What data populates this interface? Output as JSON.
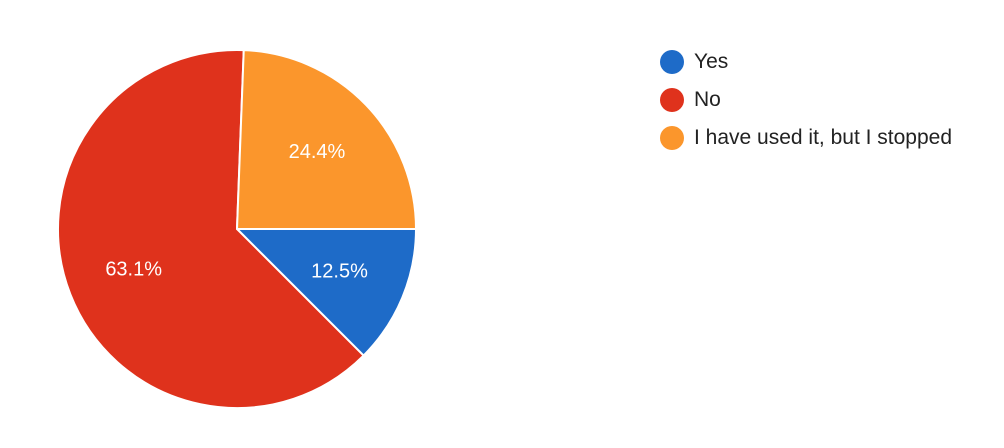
{
  "chart_data": {
    "type": "pie",
    "slices": [
      {
        "label": "Yes",
        "value": 12.5,
        "display": "12.5%",
        "color": "#1e6bc8"
      },
      {
        "label": "No",
        "value": 63.1,
        "display": "63.1%",
        "color": "#df321c"
      },
      {
        "label": "I have used it, but I stopped",
        "value": 24.4,
        "display": "24.4%",
        "color": "#fb962c"
      }
    ],
    "legend_position": "right"
  }
}
